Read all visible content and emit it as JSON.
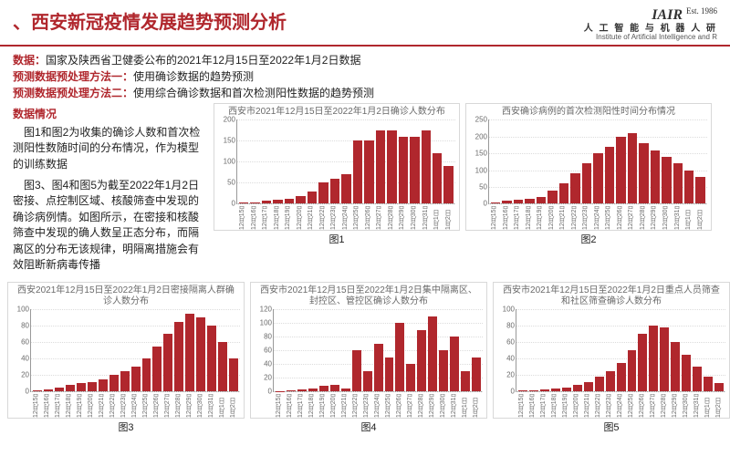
{
  "header": {
    "title": "、西安新冠疫情发展趋势预测分析",
    "logo": {
      "line1_main": "IAIR",
      "line1_est": "Est. 1986",
      "line2": "人 工 智 能 与 机 器 人 研",
      "line3": "Institute of Artificial Intelligence and R"
    }
  },
  "info": {
    "rows": [
      {
        "label": "数据：",
        "value": "国家及陕西省卫健委公布的2021年12月15日至2022年1月2日数据"
      },
      {
        "label": "预测数据预处理方法一：",
        "value": "使用确诊数据的趋势预测"
      },
      {
        "label": "预测数据预处理方法二：",
        "value": "使用综合确诊数据和首次检测阳性数据的趋势预测"
      }
    ]
  },
  "left_text": {
    "heading": "数据情况",
    "p1": "图1和图2为收集的确诊人数和首次检测阳性数随时间的分布情况，作为模型的训练数据",
    "p2": "图3、图4和图5为截至2022年1月2日密接、点控制区域、核酸筛查中发现的确诊病例情。如图所示，在密接和核酸筛查中发现的确人数呈正态分布，而隔离区的分布无该规律，明隔离措施会有效阻断新病毒传播"
  },
  "colors": {
    "bar": "#b0272d",
    "axis": "#999999",
    "grid": "#dcdcdc",
    "title": "#6a6a6a",
    "border": "#d8d8d8"
  },
  "dates": [
    "12月15日",
    "12月16日",
    "12月17日",
    "12月18日",
    "12月19日",
    "12月20日",
    "12月21日",
    "12月22日",
    "12月23日",
    "12月24日",
    "12月25日",
    "12月26日",
    "12月27日",
    "12月28日",
    "12月29日",
    "12月30日",
    "12月31日",
    "1月1日",
    "1月2日"
  ],
  "charts": {
    "fig1": {
      "title": "西安市2021年12月15日至2022年1月2日确诊人数分布",
      "label": "图1",
      "ymax": 200,
      "ytick_step": 50,
      "values": [
        2,
        4,
        8,
        10,
        12,
        18,
        30,
        50,
        60,
        70,
        150,
        150,
        175,
        175,
        160,
        160,
        175,
        120,
        90
      ]
    },
    "fig2": {
      "title": "西安确诊病例的首次检测阳性时间分布情况",
      "label": "图2",
      "ymax": 250,
      "ytick_step": 50,
      "values": [
        5,
        10,
        12,
        15,
        20,
        40,
        60,
        90,
        120,
        150,
        170,
        200,
        210,
        180,
        160,
        140,
        120,
        100,
        80
      ]
    },
    "fig3": {
      "title": "西安2021年12月15日至2022年1月2日密接隔离人群确诊人数分布",
      "label": "图3",
      "ymax": 100,
      "ytick_step": 20,
      "values": [
        2,
        3,
        5,
        8,
        10,
        12,
        15,
        20,
        25,
        30,
        40,
        55,
        70,
        85,
        95,
        90,
        80,
        60,
        40
      ]
    },
    "fig4": {
      "title": "西安市2021年12月15日至2022年1月2日集中隔离区、封控区、管控区确诊人数分布",
      "label": "图4",
      "ymax": 120,
      "ytick_step": 20,
      "values": [
        1,
        2,
        3,
        5,
        8,
        10,
        5,
        60,
        30,
        70,
        50,
        100,
        40,
        90,
        110,
        60,
        80,
        30,
        50
      ]
    },
    "fig5": {
      "title": "西安市2021年12月15日至2022年1月2日重点人员筛查和社区筛查确诊人数分布",
      "label": "图5",
      "ymax": 100,
      "ytick_step": 20,
      "values": [
        1,
        2,
        3,
        4,
        5,
        8,
        12,
        18,
        25,
        35,
        50,
        70,
        80,
        78,
        60,
        45,
        30,
        18,
        10
      ]
    }
  },
  "layout": {
    "fig1_size": [
      270,
      140
    ],
    "fig2_size": [
      270,
      140
    ],
    "fig_row2_height": 150
  }
}
